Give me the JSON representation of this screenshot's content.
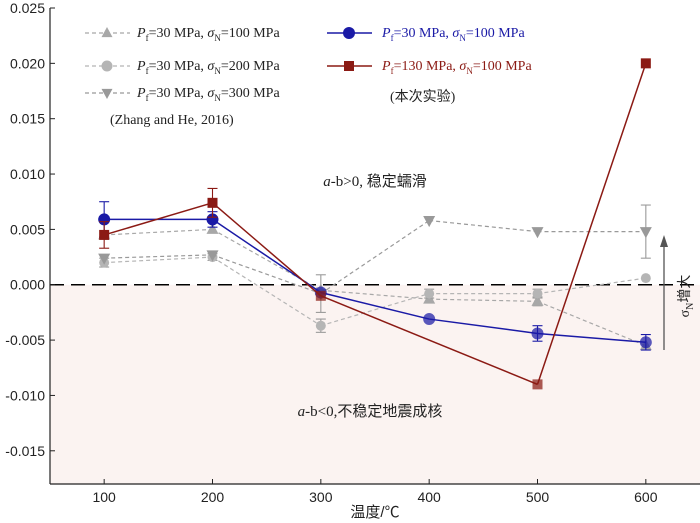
{
  "chart_data": {
    "type": "line",
    "xlabel": "温度/℃",
    "ylabel": "",
    "x": [
      100,
      200,
      300,
      400,
      500,
      600
    ],
    "xlim": [
      50,
      650
    ],
    "ylim": [
      -0.018,
      0.025
    ],
    "yticks": [
      -0.015,
      -0.01,
      -0.005,
      0.0,
      0.005,
      0.01,
      0.015,
      0.02,
      0.025
    ],
    "ytick_labels": [
      "-0.015",
      "-0.010",
      "-0.005",
      "0.000",
      "0.005",
      "0.010",
      "0.015",
      "0.020",
      "0.025"
    ],
    "xtick_labels": [
      "100",
      "200",
      "300",
      "400",
      "500",
      "600"
    ],
    "series": [
      {
        "name": "P_f=30 MPa, σ_N=100 MPa (Zhang and He, 2016)",
        "marker": "triangle-up",
        "color": "#a8a8a8",
        "dashed": true,
        "values": [
          0.0045,
          0.005,
          -0.0005,
          -0.0013,
          -0.0015,
          -0.0055
        ],
        "errors": [
          0,
          0,
          0,
          0,
          0.0004,
          0
        ]
      },
      {
        "name": "P_f=30 MPa, σ_N=200 MPa (Zhang and He, 2016)",
        "marker": "circle",
        "color": "#b5b5b5",
        "dashed": true,
        "values": [
          0.002,
          0.0025,
          -0.0037,
          -0.0008,
          -0.0008,
          0.0006
        ],
        "errors": [
          0.0004,
          0.0003,
          0.0006,
          0.0004,
          0.0004,
          0
        ]
      },
      {
        "name": "P_f=30 MPa, σ_N=300 MPa (Zhang and He, 2016)",
        "marker": "triangle-down",
        "color": "#999999",
        "dashed": true,
        "values": [
          0.0024,
          0.0027,
          -0.0008,
          0.0058,
          0.0048,
          0.0048
        ],
        "errors": [
          0,
          0,
          0.0017,
          0,
          0,
          0.0024
        ]
      },
      {
        "name": "P_f=30 MPa, σ_N=100 MPa",
        "marker": "circle",
        "color": "#1a1aa6",
        "dashed": false,
        "values": [
          0.0059,
          0.0059,
          -0.0007,
          -0.0031,
          -0.0044,
          -0.0052
        ],
        "errors": [
          0.0016,
          0.0007,
          0,
          0,
          0.0007,
          0.0007
        ]
      },
      {
        "name": "P_f=130 MPa, σ_N=100 MPa (本次实验)",
        "marker": "square",
        "color": "#8b1a14",
        "dashed": false,
        "values": [
          0.0045,
          0.0074,
          -0.001,
          null,
          -0.009,
          0.02
        ],
        "errors": [
          0.0012,
          0.0013,
          0,
          0,
          0,
          0
        ]
      }
    ],
    "annotations": {
      "stable": "a-b>0, 稳定蠕滑",
      "unstable": "a-b<0,不稳定地震成核",
      "sigma_arrow": "σN增大"
    },
    "legend": {
      "left": [
        {
          "p": "P",
          "psub": "f",
          "mid": "=30 MPa, σ",
          "ssub": "N",
          "tail": "=100 MPa"
        },
        {
          "p": "P",
          "psub": "f",
          "mid": "=30 MPa, σ",
          "ssub": "N",
          "tail": "=200 MPa"
        },
        {
          "p": "P",
          "psub": "f",
          "mid": "=30 MPa, σ",
          "ssub": "N",
          "tail": "=300 MPa"
        }
      ],
      "left_source": "(Zhang and He, 2016)",
      "right": [
        {
          "p": "P",
          "psub": "f",
          "mid": "=30 MPa, σ",
          "ssub": "N",
          "tail": "=100 MPa"
        },
        {
          "p": "P",
          "psub": "f",
          "mid": "=130 MPa, σ",
          "ssub": "N",
          "tail": "=100 MPa"
        }
      ],
      "right_source": "(本次实验)",
      "placement": "top"
    },
    "colors": {
      "negative_region": "#fbf3f1",
      "zero_line": "#000000"
    }
  }
}
